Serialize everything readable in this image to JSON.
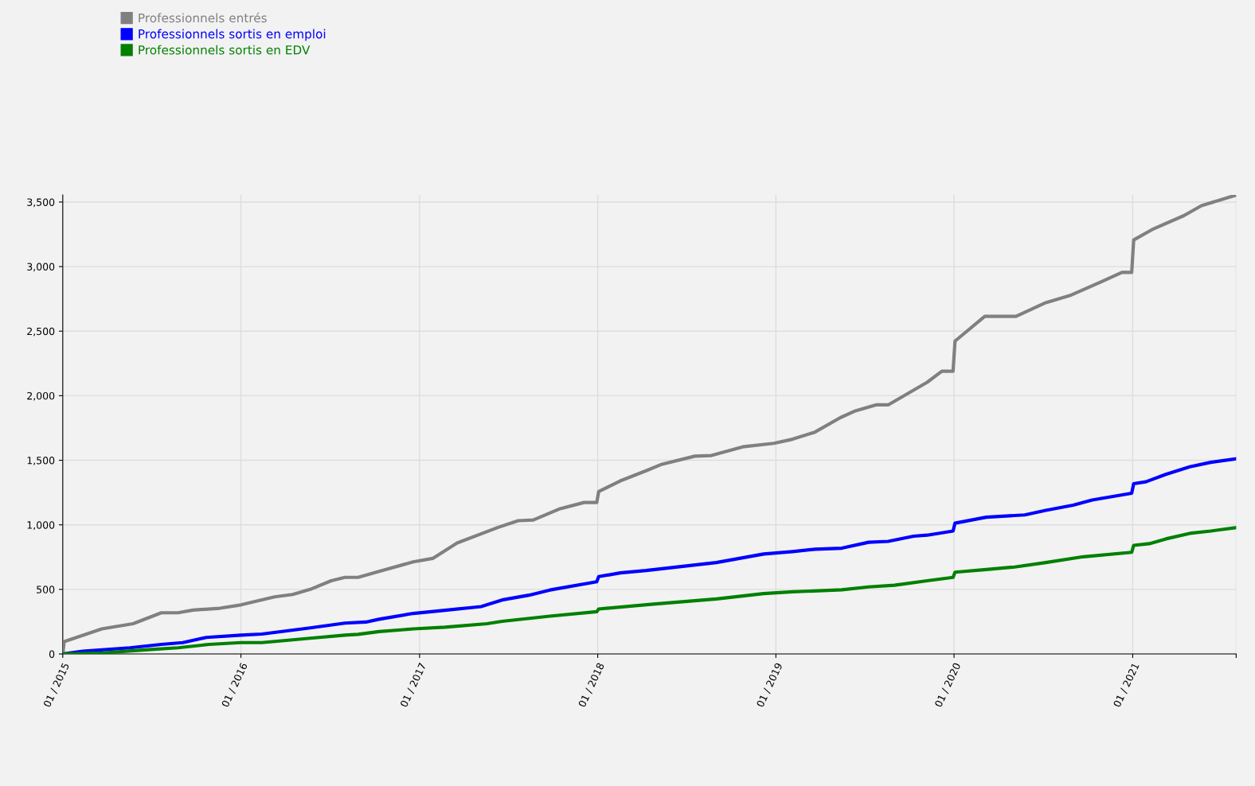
{
  "chart_data": {
    "type": "line",
    "legend": "top left",
    "grid": true,
    "line_style": "solid",
    "marker": "none",
    "xlim": [
      "2015-01-01",
      "2021-08-01"
    ],
    "xticks": [
      {
        "value": "2015-01-01",
        "label": "01 / 2015"
      },
      {
        "value": "2016-01-01",
        "label": "01 / 2016"
      },
      {
        "value": "2017-01-01",
        "label": "01 / 2017"
      },
      {
        "value": "2018-01-01",
        "label": "01 / 2018"
      },
      {
        "value": "2019-01-01",
        "label": "01 / 2019"
      },
      {
        "value": "2020-01-01",
        "label": "01 / 2020"
      },
      {
        "value": "2021-01-01",
        "label": "01 / 2021"
      },
      {
        "value": "2021-08-01",
        "label": null
      }
    ],
    "ylim": [
      0,
      3555
    ],
    "yticks": [
      0,
      {
        "value": 500,
        "label": "500"
      },
      {
        "value": 1000,
        "label": "1,000"
      },
      {
        "value": 1500,
        "label": "1,500"
      },
      {
        "value": 2000,
        "label": "2,000"
      },
      {
        "value": 2500,
        "label": "2,500"
      },
      {
        "value": 3000,
        "label": "3,000"
      },
      {
        "value": 3500,
        "label": "3,500"
      }
    ],
    "series": [
      {
        "name": "Professionnels entrés",
        "color": "#808080",
        "x": [
          "2015-01-01",
          "2015-01-04",
          "2015-03-22",
          "2015-05-25",
          "2015-07-22",
          "2015-08-25",
          "2015-09-25",
          "2015-11-19",
          "2016-01-01",
          "2016-03-10",
          "2016-04-16",
          "2016-05-22",
          "2016-07-04",
          "2016-08-01",
          "2016-08-28",
          "2016-10-10",
          "2016-12-19",
          "2017-01-28",
          "2017-03-19",
          "2017-06-10",
          "2017-07-22",
          "2017-08-22",
          "2017-10-16",
          "2017-12-04",
          "2017-12-30",
          "2018-01-03",
          "2018-02-16",
          "2018-04-10",
          "2018-05-10",
          "2018-07-19",
          "2018-08-22",
          "2018-10-25",
          "2018-12-28",
          "2019-02-04",
          "2019-03-22",
          "2019-05-13",
          "2019-06-13",
          "2019-07-25",
          "2019-08-19",
          "2019-11-07",
          "2019-12-07",
          "2019-12-30",
          "2020-01-03",
          "2020-03-04",
          "2020-05-07",
          "2020-07-07",
          "2020-08-25",
          "2020-10-28",
          "2020-12-10",
          "2020-12-30",
          "2021-01-03",
          "2021-02-13",
          "2021-04-16",
          "2021-05-22",
          "2021-08-01"
        ],
        "values": [
          0,
          96,
          194,
          234,
          319,
          319,
          340,
          354,
          380,
          442,
          461,
          500,
          567,
          593,
          593,
          639,
          713,
          740,
          860,
          979,
          1032,
          1037,
          1125,
          1173,
          1173,
          1258,
          1340,
          1419,
          1466,
          1532,
          1537,
          1604,
          1631,
          1663,
          1718,
          1830,
          1883,
          1929,
          1929,
          2104,
          2190,
          2190,
          2423,
          2615,
          2615,
          2721,
          2775,
          2881,
          2955,
          2955,
          3206,
          3293,
          3395,
          3472,
          3554
        ]
      },
      {
        "name": "Professionnels sortis en emploi",
        "color": "#0000ff",
        "x": [
          "2015-01-01",
          "2015-02-11",
          "2015-05-19",
          "2015-07-22",
          "2015-09-04",
          "2015-10-22",
          "2016-01-01",
          "2016-02-13",
          "2016-05-22",
          "2016-08-01",
          "2016-09-13",
          "2016-10-10",
          "2016-12-19",
          "2017-02-22",
          "2017-05-07",
          "2017-06-19",
          "2017-08-13",
          "2017-09-25",
          "2017-12-30",
          "2018-01-03",
          "2018-02-16",
          "2018-04-10",
          "2018-09-01",
          "2018-12-07",
          "2019-02-04",
          "2019-03-22",
          "2019-05-16",
          "2019-07-10",
          "2019-08-19",
          "2019-10-10",
          "2019-11-07",
          "2019-12-30",
          "2020-01-03",
          "2020-03-07",
          "2020-05-25",
          "2020-07-07",
          "2020-09-01",
          "2020-10-10",
          "2020-12-30",
          "2021-01-03",
          "2021-01-28",
          "2021-03-10",
          "2021-04-28",
          "2021-06-10",
          "2021-08-01"
        ],
        "values": [
          0,
          21,
          48,
          74,
          88,
          128,
          146,
          154,
          202,
          239,
          247,
          269,
          314,
          338,
          367,
          418,
          455,
          495,
          559,
          599,
          628,
          646,
          708,
          774,
          793,
          811,
          819,
          865,
          872,
          912,
          920,
          952,
          1013,
          1059,
          1077,
          1112,
          1152,
          1192,
          1245,
          1319,
          1333,
          1391,
          1450,
          1484,
          1511
        ]
      },
      {
        "name": "Professionnels sortis en EDV",
        "color": "#008000",
        "x": [
          "2015-01-01",
          "2015-03-22",
          "2015-07-01",
          "2015-08-25",
          "2015-10-28",
          "2016-01-01",
          "2016-02-13",
          "2016-05-22",
          "2016-08-01",
          "2016-08-28",
          "2016-10-10",
          "2016-12-19",
          "2017-02-22",
          "2017-05-19",
          "2017-06-19",
          "2017-09-25",
          "2017-12-30",
          "2018-01-03",
          "2018-04-25",
          "2018-09-01",
          "2018-12-07",
          "2019-02-04",
          "2019-05-16",
          "2019-07-10",
          "2019-09-01",
          "2019-11-07",
          "2019-12-30",
          "2020-01-03",
          "2020-03-07",
          "2020-05-04",
          "2020-07-07",
          "2020-09-22",
          "2020-12-30",
          "2021-01-03",
          "2021-02-04",
          "2021-03-10",
          "2021-04-28",
          "2021-06-10",
          "2021-08-01"
        ],
        "values": [
          0,
          8,
          35,
          48,
          74,
          88,
          88,
          122,
          146,
          152,
          173,
          194,
          207,
          234,
          253,
          293,
          327,
          348,
          386,
          426,
          468,
          481,
          497,
          519,
          532,
          567,
          593,
          633,
          654,
          673,
          708,
          753,
          787,
          841,
          854,
          891,
          934,
          952,
          979
        ]
      }
    ]
  }
}
